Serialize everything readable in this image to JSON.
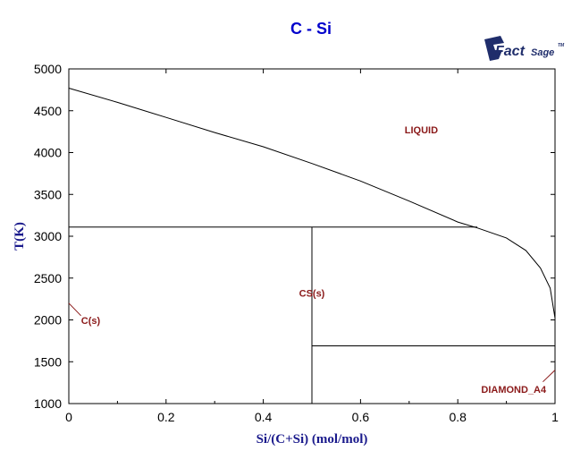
{
  "chart_data": {
    "type": "line",
    "title": "C - Si",
    "xlabel": "Si/(C+Si) (mol/mol)",
    "ylabel": "T(K)",
    "xlim": [
      0,
      1
    ],
    "ylim": [
      1000,
      5000
    ],
    "x_ticks": [
      {
        "value": 0,
        "label": "0"
      },
      {
        "value": 0.2,
        "label": "0.2"
      },
      {
        "value": 0.4,
        "label": "0.4"
      },
      {
        "value": 0.6,
        "label": "0.6"
      },
      {
        "value": 0.8,
        "label": "0.8"
      },
      {
        "value": 1,
        "label": "1"
      }
    ],
    "y_ticks": [
      {
        "value": 1000,
        "label": "1000"
      },
      {
        "value": 1500,
        "label": "1500"
      },
      {
        "value": 2000,
        "label": "2000"
      },
      {
        "value": 2500,
        "label": "2500"
      },
      {
        "value": 3000,
        "label": "3000"
      },
      {
        "value": 3500,
        "label": "3500"
      },
      {
        "value": 4000,
        "label": "4000"
      },
      {
        "value": 4500,
        "label": "4500"
      },
      {
        "value": 5000,
        "label": "5000"
      }
    ],
    "grid": false,
    "lines": [
      {
        "id": "liquidus",
        "points": [
          [
            0,
            4770
          ],
          [
            0.1,
            4600
          ],
          [
            0.2,
            4420
          ],
          [
            0.3,
            4240
          ],
          [
            0.4,
            4070
          ],
          [
            0.5,
            3870
          ],
          [
            0.6,
            3660
          ],
          [
            0.7,
            3420
          ],
          [
            0.8,
            3170
          ],
          [
            0.84,
            3100
          ],
          [
            0.9,
            2980
          ],
          [
            0.94,
            2830
          ],
          [
            0.97,
            2620
          ],
          [
            0.99,
            2380
          ],
          [
            1.0,
            2020
          ]
        ]
      },
      {
        "id": "peritectic-line",
        "points": [
          [
            0,
            3110
          ],
          [
            0.84,
            3110
          ]
        ]
      },
      {
        "id": "sic-composition-line",
        "points": [
          [
            0.5,
            1000
          ],
          [
            0.5,
            3110
          ]
        ]
      },
      {
        "id": "eutectic-line",
        "points": [
          [
            0.5,
            1690
          ],
          [
            1.0,
            1690
          ]
        ]
      }
    ],
    "phase_labels": [
      {
        "text": "LIQUID",
        "x": 0.725,
        "y": 4230
      },
      {
        "text": "CS(s)",
        "x": 0.5,
        "y": 2280
      },
      {
        "text": "C(s)",
        "x": 0.045,
        "y": 1950
      },
      {
        "text": "DIAMOND_A4",
        "x": 0.915,
        "y": 1130
      }
    ],
    "leader_lines": [
      {
        "from": [
          0.0,
          2200
        ],
        "to": [
          0.025,
          2050
        ]
      },
      {
        "from": [
          1.0,
          1400
        ],
        "to": [
          0.975,
          1260
        ]
      }
    ]
  },
  "logo": {
    "main": "Fact",
    "sub": "Sage",
    "mark": "TM"
  }
}
